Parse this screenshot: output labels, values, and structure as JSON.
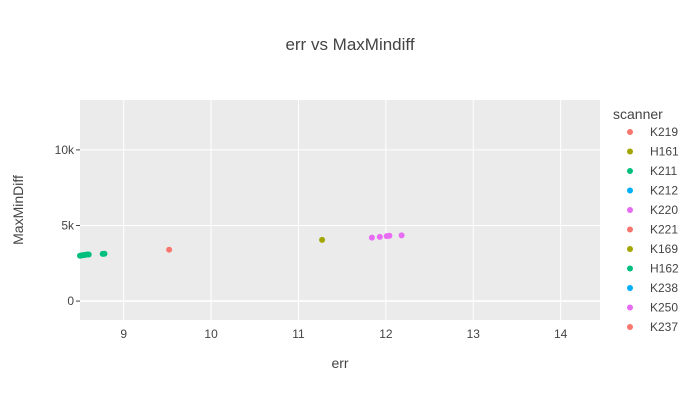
{
  "chart_data": {
    "type": "scatter",
    "title": "err vs MaxMindiff",
    "xlabel": "err",
    "ylabel": "MaxMinDiff",
    "xlim": [
      8.5,
      14.45
    ],
    "ylim": [
      -1250,
      13300
    ],
    "x_ticks": [
      9,
      10,
      11,
      12,
      13,
      14
    ],
    "y_ticks": [
      0,
      5000,
      10000
    ],
    "y_tick_labels": [
      "0",
      "5k",
      "10k"
    ],
    "grid": true,
    "legend": {
      "title": "scanner",
      "placement": "right",
      "entries": [
        {
          "name": "K219",
          "color": "#F8766D"
        },
        {
          "name": "H161",
          "color": "#A3A500"
        },
        {
          "name": "K211",
          "color": "#00BF7D"
        },
        {
          "name": "K212",
          "color": "#00B0F6"
        },
        {
          "name": "K220",
          "color": "#E76BF3"
        },
        {
          "name": "K221",
          "color": "#F8766D"
        },
        {
          "name": "K169",
          "color": "#A3A500"
        },
        {
          "name": "H162",
          "color": "#00BF7D"
        },
        {
          "name": "K238",
          "color": "#00B0F6"
        },
        {
          "name": "K250",
          "color": "#E76BF3"
        },
        {
          "name": "K237",
          "color": "#F8766D"
        }
      ]
    },
    "series": [
      {
        "name": "K219",
        "color": "#F8766D",
        "points": [
          [
            9.52,
            3400
          ]
        ]
      },
      {
        "name": "H161",
        "color": "#A3A500",
        "points": [
          [
            11.27,
            4050
          ]
        ]
      },
      {
        "name": "K211",
        "color": "#00BF7D",
        "points": [
          [
            8.5,
            3000
          ],
          [
            8.52,
            3020
          ],
          [
            8.54,
            3040
          ],
          [
            8.56,
            3060
          ],
          [
            8.58,
            3080
          ],
          [
            8.6,
            3080
          ],
          [
            8.76,
            3120
          ],
          [
            8.78,
            3130
          ]
        ]
      },
      {
        "name": "K220",
        "color": "#E76BF3",
        "points": [
          [
            11.84,
            4200
          ],
          [
            11.93,
            4250
          ],
          [
            12.01,
            4300
          ],
          [
            12.04,
            4320
          ],
          [
            12.18,
            4350
          ]
        ]
      }
    ]
  }
}
